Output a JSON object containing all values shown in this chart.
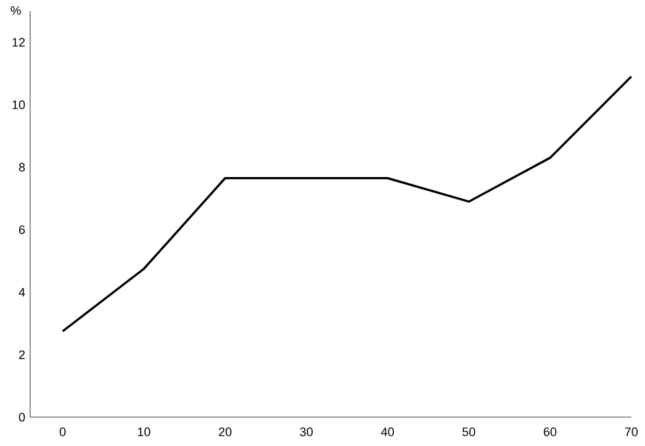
{
  "chart_data": {
    "type": "line",
    "ylabel": "%",
    "x": [
      0,
      10,
      20,
      30,
      40,
      50,
      60,
      70
    ],
    "values": [
      2.75,
      4.75,
      7.65,
      7.65,
      7.65,
      6.9,
      8.3,
      10.9
    ],
    "color": "#000000",
    "xlim": [
      -4,
      70
    ],
    "ylim": [
      0,
      13
    ],
    "xticks": [
      0,
      10,
      20,
      30,
      40,
      50,
      60,
      70
    ],
    "yticks": [
      0,
      2,
      4,
      6,
      8,
      10,
      12
    ],
    "grid": false,
    "marker": "none",
    "line_style": "solid"
  }
}
